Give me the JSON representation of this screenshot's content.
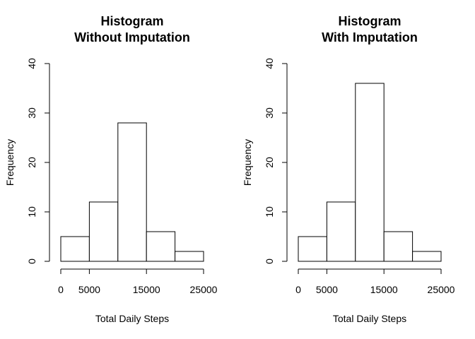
{
  "chart_data": [
    {
      "type": "bar",
      "title": "Histogram",
      "subtitle": "Without Imputation",
      "xlabel": "Total Daily Steps",
      "ylabel": "Frequency",
      "bins": [
        [
          0,
          5000
        ],
        [
          5000,
          10000
        ],
        [
          10000,
          15000
        ],
        [
          15000,
          20000
        ],
        [
          20000,
          25000
        ]
      ],
      "values": [
        5,
        12,
        28,
        6,
        2
      ],
      "xlim": [
        0,
        25000
      ],
      "ylim": [
        0,
        40
      ],
      "xticks": [
        0,
        5000,
        15000,
        25000
      ],
      "xtick_labels": [
        "0",
        "5000",
        "15000",
        "25000"
      ],
      "yticks": [
        0,
        10,
        20,
        30,
        40
      ],
      "ytick_labels": [
        "0",
        "10",
        "20",
        "30",
        "40"
      ],
      "grid": false,
      "legend": "none"
    },
    {
      "type": "bar",
      "title": "Histogram",
      "subtitle": "With Imputation",
      "xlabel": "Total Daily Steps",
      "ylabel": "Frequency",
      "bins": [
        [
          0,
          5000
        ],
        [
          5000,
          10000
        ],
        [
          10000,
          15000
        ],
        [
          15000,
          20000
        ],
        [
          20000,
          25000
        ]
      ],
      "values": [
        5,
        12,
        36,
        6,
        2
      ],
      "xlim": [
        0,
        25000
      ],
      "ylim": [
        0,
        40
      ],
      "xticks": [
        0,
        5000,
        15000,
        25000
      ],
      "xtick_labels": [
        "0",
        "5000",
        "15000",
        "25000"
      ],
      "yticks": [
        0,
        10,
        20,
        30,
        40
      ],
      "ytick_labels": [
        "0",
        "10",
        "20",
        "30",
        "40"
      ],
      "grid": false,
      "legend": "none"
    }
  ]
}
